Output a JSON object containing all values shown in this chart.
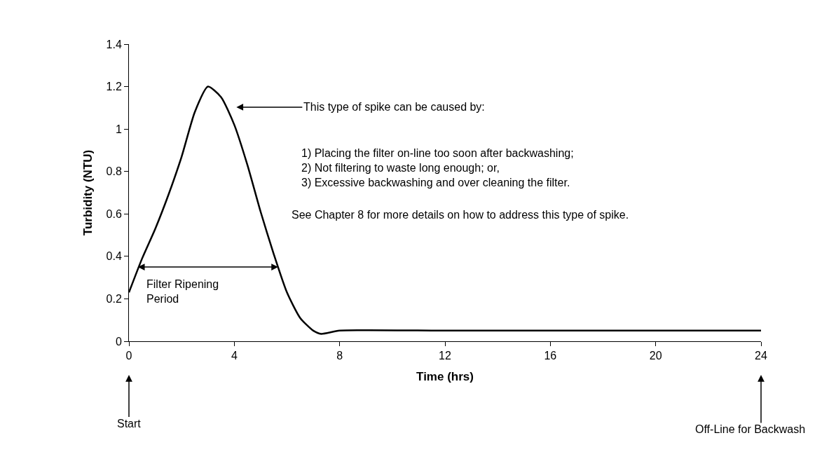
{
  "chart_data": {
    "type": "line",
    "xlabel": "Time (hrs)",
    "ylabel": "Turbidity (NTU)",
    "x": [
      0,
      0.5,
      1,
      1.5,
      2,
      2.5,
      3,
      3.5,
      4,
      4.5,
      5,
      5.5,
      6,
      6.5,
      7,
      7.3,
      8,
      12,
      16,
      20,
      24
    ],
    "series": [
      {
        "color": "#000000",
        "values": [
          0.23,
          0.39,
          0.53,
          0.69,
          0.87,
          1.08,
          1.2,
          1.15,
          1.02,
          0.83,
          0.61,
          0.41,
          0.23,
          0.11,
          0.05,
          0.035,
          0.05,
          0.05,
          0.05,
          0.05,
          0.05
        ]
      }
    ],
    "xlim": [
      0,
      24
    ],
    "xticks": [
      0,
      4,
      8,
      12,
      16,
      20,
      24
    ],
    "ylim": [
      0,
      1.4
    ],
    "yticks": [
      0,
      0.2,
      0.4,
      0.6,
      0.8,
      1,
      1.2,
      1.4
    ],
    "marker": "none",
    "line_style": "solid",
    "annotations": [
      "This type of spike can be caused by:",
      "1) Placing the filter on-line too soon after backwashing;\n2) Not filtering to waste long enough; or,\n3) Excessive backwashing and over cleaning the filter.",
      "See Chapter 8 for more details on how to address this type of spike.",
      {
        "text": "Filter Ripening\nPeriod",
        "x": 0.3,
        "y": 0.35
      },
      "Start",
      "Off-Line for Backwash"
    ]
  }
}
